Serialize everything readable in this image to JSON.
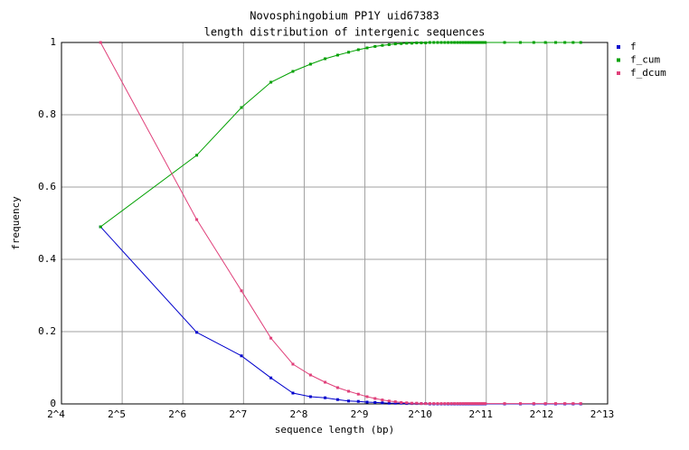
{
  "chart_data": {
    "type": "line",
    "title": "Novosphingobium PP1Y uid67383",
    "subtitle": "length distribution of intergenic sequences",
    "x_label": "sequence length (bp)",
    "y_label": "frequency",
    "log_x": 2,
    "grid": true,
    "legend": "right",
    "xlim": [
      16,
      8192
    ],
    "xticks": [
      {
        "value": 16,
        "label": "2^4"
      },
      {
        "value": 32,
        "label": "2^5"
      },
      {
        "value": 64,
        "label": "2^6"
      },
      {
        "value": 128,
        "label": "2^7"
      },
      {
        "value": 256,
        "label": "2^8"
      },
      {
        "value": 512,
        "label": "2^9"
      },
      {
        "value": 1024,
        "label": "2^10"
      },
      {
        "value": 2048,
        "label": "2^11"
      },
      {
        "value": 4096,
        "label": "2^12"
      },
      {
        "value": 8192,
        "label": "2^13"
      }
    ],
    "ylim": [
      0,
      1
    ],
    "yticks": [
      0,
      0.2,
      0.4,
      0.6,
      0.8,
      1
    ],
    "x": [
      25,
      75,
      125,
      175,
      225,
      275,
      325,
      375,
      425,
      475,
      525,
      575,
      625,
      675,
      725,
      775,
      825,
      875,
      925,
      975,
      1025,
      1075,
      1125,
      1175,
      1225,
      1275,
      1325,
      1375,
      1425,
      1475,
      1525,
      1575,
      1625,
      1675,
      1725,
      1775,
      1825,
      1875,
      1925,
      1975,
      2025,
      2525,
      3025,
      3525,
      4025,
      4525,
      5025,
      5525,
      6025
    ],
    "series": [
      {
        "name": "f",
        "color": "#0000cc",
        "values": [
          0.49,
          0.198,
          0.133,
          0.072,
          0.03,
          0.02,
          0.017,
          0.012,
          0.008,
          0.007,
          0.005,
          0.004,
          0.003,
          0.002,
          0.002,
          0.002,
          0.001,
          0.001,
          0.001,
          0.001,
          0.001,
          0,
          0,
          0,
          0,
          0,
          0,
          0,
          0,
          0,
          0,
          0,
          0,
          0,
          0,
          0,
          0,
          0,
          0,
          0,
          0,
          0,
          0,
          0,
          0,
          0,
          0,
          0,
          0
        ]
      },
      {
        "name": "f_cum",
        "color": "#00a000",
        "values": [
          0.49,
          0.688,
          0.82,
          0.89,
          0.92,
          0.94,
          0.955,
          0.965,
          0.973,
          0.98,
          0.985,
          0.989,
          0.992,
          0.994,
          0.996,
          0.997,
          0.998,
          0.998,
          0.999,
          0.999,
          0.999,
          1,
          1,
          1,
          1,
          1,
          1,
          1,
          1,
          1,
          1,
          1,
          1,
          1,
          1,
          1,
          1,
          1,
          1,
          1,
          1,
          1,
          1,
          1,
          1,
          1,
          1,
          1,
          1
        ]
      },
      {
        "name": "f_dcum",
        "color": "#e0407a",
        "values": [
          1,
          0.51,
          0.313,
          0.182,
          0.11,
          0.08,
          0.06,
          0.045,
          0.035,
          0.027,
          0.02,
          0.015,
          0.011,
          0.008,
          0.006,
          0.004,
          0.003,
          0.002,
          0.002,
          0.001,
          0.001,
          0.001,
          0.001,
          0.001,
          0.001,
          0.001,
          0.001,
          0.001,
          0.001,
          0.001,
          0.001,
          0.001,
          0.001,
          0.001,
          0.001,
          0.001,
          0.001,
          0.001,
          0.001,
          0.001,
          0.001,
          0.001,
          0.001,
          0.001,
          0.001,
          0.001,
          0.001,
          0.001,
          0.001
        ]
      }
    ]
  }
}
